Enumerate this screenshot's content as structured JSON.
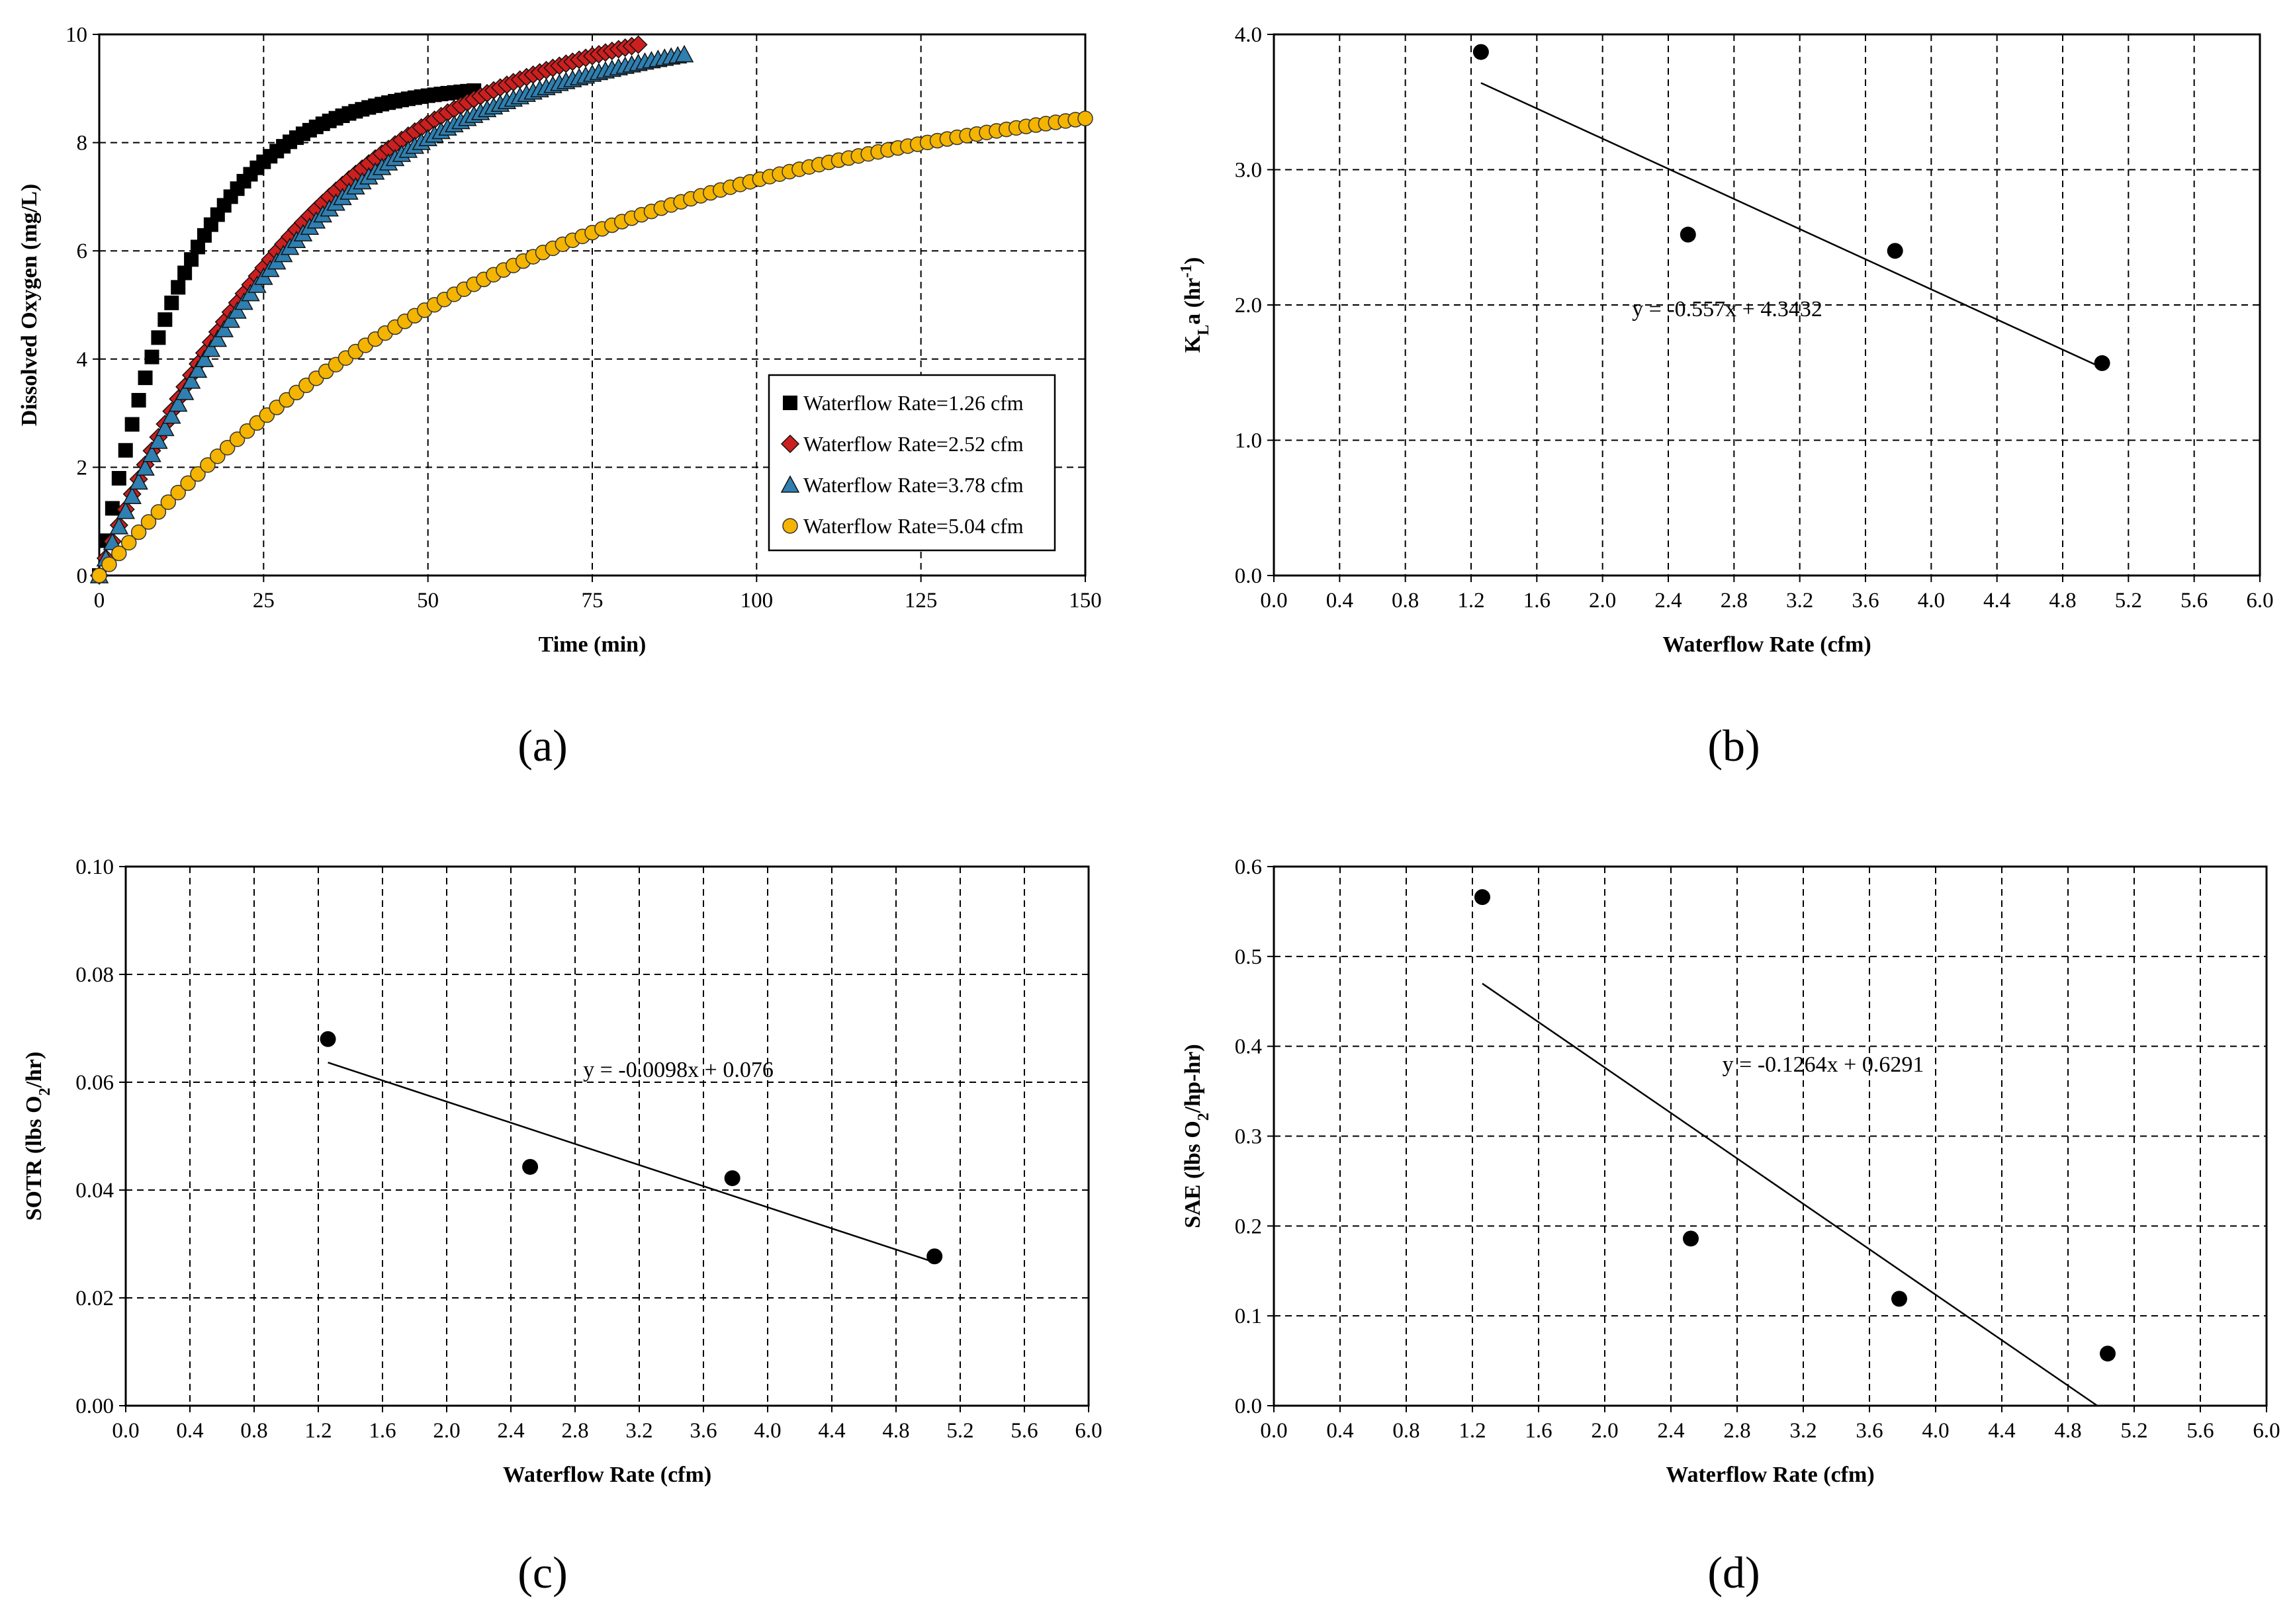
{
  "chart_data": [
    {
      "panel_label": "(a)",
      "type": "scatter",
      "xlabel": "Time (min)",
      "ylabel": "Dissolved Oxygen (mg/L)",
      "xlim": [
        0,
        150
      ],
      "ylim": [
        0,
        10
      ],
      "xticks": [
        "0",
        "25",
        "50",
        "75",
        "100",
        "125",
        "150"
      ],
      "yticks": [
        "0",
        "2",
        "4",
        "6",
        "8",
        "10"
      ],
      "grid": true,
      "legend_position": "lower-right",
      "series": [
        {
          "name": "Waterflow Rate=1.26 cfm",
          "marker": "square",
          "color": "#000000",
          "cs": 9.1,
          "k": 4.4,
          "x_end": 57,
          "step": 1
        },
        {
          "name": "Waterflow Rate=2.52 cfm",
          "marker": "diamond",
          "color": "#cc1f1f",
          "cs": 10.7,
          "k": 1.82,
          "x_end": 82,
          "step": 1
        },
        {
          "name": "Waterflow Rate=3.78 cfm",
          "marker": "triangle",
          "color": "#2f7fb0",
          "cs": 10.3,
          "k": 1.84,
          "x_end": 89,
          "step": 1
        },
        {
          "name": "Waterflow Rate=5.04 cfm",
          "marker": "circle",
          "color": "#f4b400",
          "cs": 9.5,
          "k": 0.88,
          "x_end": 150,
          "step": 1.5
        }
      ]
    },
    {
      "panel_label": "(b)",
      "type": "scatter",
      "xlabel": "Waterflow Rate (cfm)",
      "ylabel_parts": [
        "K",
        "L",
        "a (hr",
        "-1",
        ")"
      ],
      "xlim": [
        0,
        6
      ],
      "ylim": [
        0,
        4
      ],
      "xticks": [
        "0.0",
        "0.4",
        "0.8",
        "1.2",
        "1.6",
        "2.0",
        "2.4",
        "2.8",
        "3.2",
        "3.6",
        "4.0",
        "4.4",
        "4.8",
        "5.2",
        "5.6",
        "6.0"
      ],
      "yticks": [
        "0.0",
        "1.0",
        "2.0",
        "3.0",
        "4.0"
      ],
      "grid": true,
      "points": [
        {
          "x": 1.26,
          "y": 3.87
        },
        {
          "x": 2.52,
          "y": 2.52
        },
        {
          "x": 3.78,
          "y": 2.4
        },
        {
          "x": 5.04,
          "y": 1.57
        }
      ],
      "trendline": {
        "slope": -0.557,
        "intercept": 4.3432,
        "x_range": [
          1.26,
          5.04
        ],
        "equation": "y = -0.557x + 4.3432"
      }
    },
    {
      "panel_label": "(c)",
      "type": "scatter",
      "xlabel": "Waterflow Rate (cfm)",
      "ylabel_parts": [
        "SOTR (lbs O",
        "2",
        "/hr)"
      ],
      "xlim": [
        0,
        6
      ],
      "ylim": [
        0,
        0.1
      ],
      "xticks": [
        "0.0",
        "0.4",
        "0.8",
        "1.2",
        "1.6",
        "2.0",
        "2.4",
        "2.8",
        "3.2",
        "3.6",
        "4.0",
        "4.4",
        "4.8",
        "5.2",
        "5.6",
        "6.0"
      ],
      "yticks": [
        "0.00",
        "0.02",
        "0.04",
        "0.06",
        "0.08",
        "0.10"
      ],
      "grid": true,
      "points": [
        {
          "x": 1.26,
          "y": 0.068
        },
        {
          "x": 2.52,
          "y": 0.0443
        },
        {
          "x": 3.78,
          "y": 0.0422
        },
        {
          "x": 5.04,
          "y": 0.0277
        }
      ],
      "trendline": {
        "slope": -0.0098,
        "intercept": 0.076,
        "x_range": [
          1.26,
          5.04
        ],
        "equation": "y = -0.0098x + 0.076"
      }
    },
    {
      "panel_label": "(d)",
      "type": "scatter",
      "xlabel": "Waterflow Rate (cfm)",
      "ylabel_parts": [
        "SAE (lbs O",
        "2",
        "/hp-hr)"
      ],
      "xlim": [
        0,
        6
      ],
      "ylim": [
        0,
        0.6
      ],
      "xticks": [
        "0.0",
        "0.4",
        "0.8",
        "1.2",
        "1.6",
        "2.0",
        "2.4",
        "2.8",
        "3.2",
        "3.6",
        "4.0",
        "4.4",
        "4.8",
        "5.2",
        "5.6",
        "6.0"
      ],
      "yticks": [
        "0.0",
        "0.1",
        "0.2",
        "0.3",
        "0.4",
        "0.5",
        "0.6"
      ],
      "grid": true,
      "points": [
        {
          "x": 1.26,
          "y": 0.566
        },
        {
          "x": 2.52,
          "y": 0.186
        },
        {
          "x": 3.78,
          "y": 0.119
        },
        {
          "x": 5.04,
          "y": 0.058
        }
      ],
      "trendline": {
        "slope": -0.1264,
        "intercept": 0.6291,
        "x_range": [
          1.26,
          4.977
        ],
        "equation": "y = -0.1264x + 0.6291"
      }
    }
  ]
}
